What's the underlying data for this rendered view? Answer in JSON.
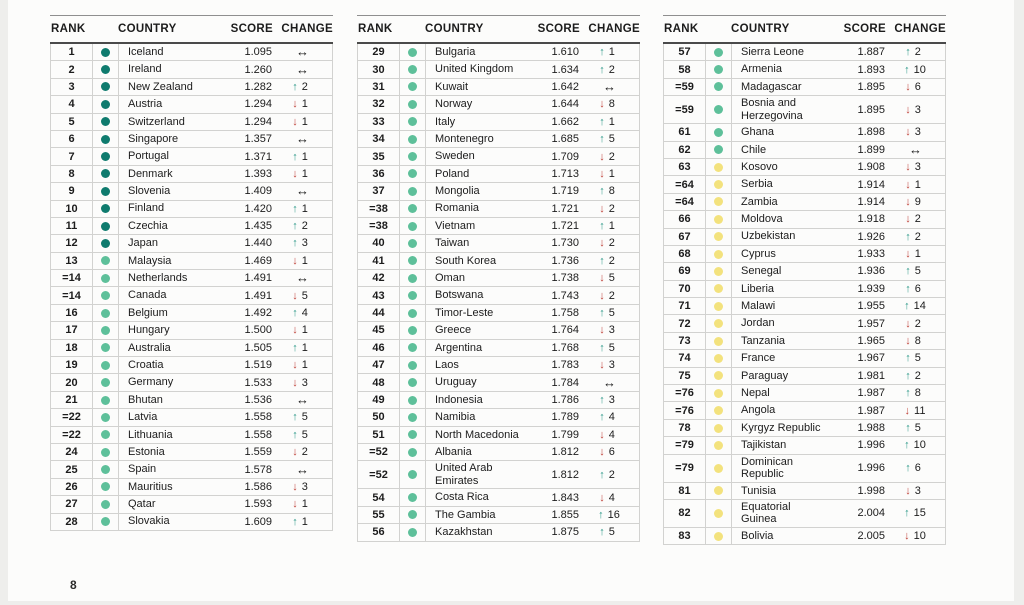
{
  "page": {
    "page_number": "8"
  },
  "colors": {
    "bands": {
      "dark": "#0f7b6e",
      "green": "#5ec09a",
      "yellow": "#f3e27d"
    },
    "change": {
      "up": "#2f9a8a",
      "down": "#c0453c",
      "same": "#1a1a1a"
    },
    "text": "#1c1c1c",
    "grid_line": "#d2d2d0"
  },
  "icons": {
    "up": "↑",
    "down": "↓",
    "same": "↔"
  },
  "tables": [
    {
      "headers": [
        "RANK",
        "COUNTRY",
        "SCORE",
        "CHANGE"
      ],
      "rows": [
        {
          "rank": "1",
          "band": "dark",
          "country": "Iceland",
          "score": "1.095",
          "dir": "same",
          "change": ""
        },
        {
          "rank": "2",
          "band": "dark",
          "country": "Ireland",
          "score": "1.260",
          "dir": "same",
          "change": ""
        },
        {
          "rank": "3",
          "band": "dark",
          "country": "New Zealand",
          "score": "1.282",
          "dir": "up",
          "change": "2"
        },
        {
          "rank": "4",
          "band": "dark",
          "country": "Austria",
          "score": "1.294",
          "dir": "down",
          "change": "1"
        },
        {
          "rank": "5",
          "band": "dark",
          "country": "Switzerland",
          "score": "1.294",
          "dir": "down",
          "change": "1"
        },
        {
          "rank": "6",
          "band": "dark",
          "country": "Singapore",
          "score": "1.357",
          "dir": "same",
          "change": ""
        },
        {
          "rank": "7",
          "band": "dark",
          "country": "Portugal",
          "score": "1.371",
          "dir": "up",
          "change": "1"
        },
        {
          "rank": "8",
          "band": "dark",
          "country": "Denmark",
          "score": "1.393",
          "dir": "down",
          "change": "1"
        },
        {
          "rank": "9",
          "band": "dark",
          "country": "Slovenia",
          "score": "1.409",
          "dir": "same",
          "change": ""
        },
        {
          "rank": "10",
          "band": "dark",
          "country": "Finland",
          "score": "1.420",
          "dir": "up",
          "change": "1"
        },
        {
          "rank": "11",
          "band": "dark",
          "country": "Czechia",
          "score": "1.435",
          "dir": "up",
          "change": "2"
        },
        {
          "rank": "12",
          "band": "dark",
          "country": "Japan",
          "score": "1.440",
          "dir": "up",
          "change": "3"
        },
        {
          "rank": "13",
          "band": "green",
          "country": "Malaysia",
          "score": "1.469",
          "dir": "down",
          "change": "1"
        },
        {
          "rank": "=14",
          "band": "green",
          "country": "Netherlands",
          "score": "1.491",
          "dir": "same",
          "change": ""
        },
        {
          "rank": "=14",
          "band": "green",
          "country": "Canada",
          "score": "1.491",
          "dir": "down",
          "change": "5"
        },
        {
          "rank": "16",
          "band": "green",
          "country": "Belgium",
          "score": "1.492",
          "dir": "up",
          "change": "4"
        },
        {
          "rank": "17",
          "band": "green",
          "country": "Hungary",
          "score": "1.500",
          "dir": "down",
          "change": "1"
        },
        {
          "rank": "18",
          "band": "green",
          "country": "Australia",
          "score": "1.505",
          "dir": "up",
          "change": "1"
        },
        {
          "rank": "19",
          "band": "green",
          "country": "Croatia",
          "score": "1.519",
          "dir": "down",
          "change": "1"
        },
        {
          "rank": "20",
          "band": "green",
          "country": "Germany",
          "score": "1.533",
          "dir": "down",
          "change": "3"
        },
        {
          "rank": "21",
          "band": "green",
          "country": "Bhutan",
          "score": "1.536",
          "dir": "same",
          "change": ""
        },
        {
          "rank": "=22",
          "band": "green",
          "country": "Latvia",
          "score": "1.558",
          "dir": "up",
          "change": "5"
        },
        {
          "rank": "=22",
          "band": "green",
          "country": "Lithuania",
          "score": "1.558",
          "dir": "up",
          "change": "5"
        },
        {
          "rank": "24",
          "band": "green",
          "country": "Estonia",
          "score": "1.559",
          "dir": "down",
          "change": "2"
        },
        {
          "rank": "25",
          "band": "green",
          "country": "Spain",
          "score": "1.578",
          "dir": "same",
          "change": ""
        },
        {
          "rank": "26",
          "band": "green",
          "country": "Mauritius",
          "score": "1.586",
          "dir": "down",
          "change": "3"
        },
        {
          "rank": "27",
          "band": "green",
          "country": "Qatar",
          "score": "1.593",
          "dir": "down",
          "change": "1"
        },
        {
          "rank": "28",
          "band": "green",
          "country": "Slovakia",
          "score": "1.609",
          "dir": "up",
          "change": "1"
        }
      ]
    },
    {
      "headers": [
        "RANK",
        "COUNTRY",
        "SCORE",
        "CHANGE"
      ],
      "rows": [
        {
          "rank": "29",
          "band": "green",
          "country": "Bulgaria",
          "score": "1.610",
          "dir": "up",
          "change": "1"
        },
        {
          "rank": "30",
          "band": "green",
          "country": "United Kingdom",
          "score": "1.634",
          "dir": "up",
          "change": "2"
        },
        {
          "rank": "31",
          "band": "green",
          "country": "Kuwait",
          "score": "1.642",
          "dir": "same",
          "change": ""
        },
        {
          "rank": "32",
          "band": "green",
          "country": "Norway",
          "score": "1.644",
          "dir": "down",
          "change": "8"
        },
        {
          "rank": "33",
          "band": "green",
          "country": "Italy",
          "score": "1.662",
          "dir": "up",
          "change": "1"
        },
        {
          "rank": "34",
          "band": "green",
          "country": "Montenegro",
          "score": "1.685",
          "dir": "up",
          "change": "5"
        },
        {
          "rank": "35",
          "band": "green",
          "country": "Sweden",
          "score": "1.709",
          "dir": "down",
          "change": "2"
        },
        {
          "rank": "36",
          "band": "green",
          "country": "Poland",
          "score": "1.713",
          "dir": "down",
          "change": "1"
        },
        {
          "rank": "37",
          "band": "green",
          "country": "Mongolia",
          "score": "1.719",
          "dir": "up",
          "change": "8"
        },
        {
          "rank": "=38",
          "band": "green",
          "country": "Romania",
          "score": "1.721",
          "dir": "down",
          "change": "2"
        },
        {
          "rank": "=38",
          "band": "green",
          "country": "Vietnam",
          "score": "1.721",
          "dir": "up",
          "change": "1"
        },
        {
          "rank": "40",
          "band": "green",
          "country": "Taiwan",
          "score": "1.730",
          "dir": "down",
          "change": "2"
        },
        {
          "rank": "41",
          "band": "green",
          "country": "South Korea",
          "score": "1.736",
          "dir": "up",
          "change": "2"
        },
        {
          "rank": "42",
          "band": "green",
          "country": "Oman",
          "score": "1.738",
          "dir": "down",
          "change": "5"
        },
        {
          "rank": "43",
          "band": "green",
          "country": "Botswana",
          "score": "1.743",
          "dir": "down",
          "change": "2"
        },
        {
          "rank": "44",
          "band": "green",
          "country": "Timor-Leste",
          "score": "1.758",
          "dir": "up",
          "change": "5"
        },
        {
          "rank": "45",
          "band": "green",
          "country": "Greece",
          "score": "1.764",
          "dir": "down",
          "change": "3"
        },
        {
          "rank": "46",
          "band": "green",
          "country": "Argentina",
          "score": "1.768",
          "dir": "up",
          "change": "5"
        },
        {
          "rank": "47",
          "band": "green",
          "country": "Laos",
          "score": "1.783",
          "dir": "down",
          "change": "3"
        },
        {
          "rank": "48",
          "band": "green",
          "country": "Uruguay",
          "score": "1.784",
          "dir": "same",
          "change": ""
        },
        {
          "rank": "49",
          "band": "green",
          "country": "Indonesia",
          "score": "1.786",
          "dir": "up",
          "change": "3"
        },
        {
          "rank": "50",
          "band": "green",
          "country": "Namibia",
          "score": "1.789",
          "dir": "up",
          "change": "4"
        },
        {
          "rank": "51",
          "band": "green",
          "country": "North Macedonia",
          "score": "1.799",
          "dir": "down",
          "change": "4"
        },
        {
          "rank": "=52",
          "band": "green",
          "country": "Albania",
          "score": "1.812",
          "dir": "down",
          "change": "6"
        },
        {
          "rank": "=52",
          "band": "green",
          "country": "United Arab Emirates",
          "score": "1.812",
          "dir": "up",
          "change": "2"
        },
        {
          "rank": "54",
          "band": "green",
          "country": "Costa Rica",
          "score": "1.843",
          "dir": "down",
          "change": "4"
        },
        {
          "rank": "55",
          "band": "green",
          "country": "The Gambia",
          "score": "1.855",
          "dir": "up",
          "change": "16"
        },
        {
          "rank": "56",
          "band": "green",
          "country": "Kazakhstan",
          "score": "1.875",
          "dir": "up",
          "change": "5"
        }
      ]
    },
    {
      "headers": [
        "RANK",
        "COUNTRY",
        "SCORE",
        "CHANGE"
      ],
      "rows": [
        {
          "rank": "57",
          "band": "green",
          "country": "Sierra Leone",
          "score": "1.887",
          "dir": "up",
          "change": "2"
        },
        {
          "rank": "58",
          "band": "green",
          "country": "Armenia",
          "score": "1.893",
          "dir": "up",
          "change": "10"
        },
        {
          "rank": "=59",
          "band": "green",
          "country": "Madagascar",
          "score": "1.895",
          "dir": "down",
          "change": "6"
        },
        {
          "rank": "=59",
          "band": "green",
          "country": "Bosnia and Herzegovina",
          "score": "1.895",
          "dir": "down",
          "change": "3"
        },
        {
          "rank": "61",
          "band": "green",
          "country": "Ghana",
          "score": "1.898",
          "dir": "down",
          "change": "3"
        },
        {
          "rank": "62",
          "band": "green",
          "country": "Chile",
          "score": "1.899",
          "dir": "same",
          "change": ""
        },
        {
          "rank": "63",
          "band": "yellow",
          "country": "Kosovo",
          "score": "1.908",
          "dir": "down",
          "change": "3"
        },
        {
          "rank": "=64",
          "band": "yellow",
          "country": "Serbia",
          "score": "1.914",
          "dir": "down",
          "change": "1"
        },
        {
          "rank": "=64",
          "band": "yellow",
          "country": "Zambia",
          "score": "1.914",
          "dir": "down",
          "change": "9"
        },
        {
          "rank": "66",
          "band": "yellow",
          "country": "Moldova",
          "score": "1.918",
          "dir": "down",
          "change": "2"
        },
        {
          "rank": "67",
          "band": "yellow",
          "country": "Uzbekistan",
          "score": "1.926",
          "dir": "up",
          "change": "2"
        },
        {
          "rank": "68",
          "band": "yellow",
          "country": "Cyprus",
          "score": "1.933",
          "dir": "down",
          "change": "1"
        },
        {
          "rank": "69",
          "band": "yellow",
          "country": "Senegal",
          "score": "1.936",
          "dir": "up",
          "change": "5"
        },
        {
          "rank": "70",
          "band": "yellow",
          "country": "Liberia",
          "score": "1.939",
          "dir": "up",
          "change": "6"
        },
        {
          "rank": "71",
          "band": "yellow",
          "country": "Malawi",
          "score": "1.955",
          "dir": "up",
          "change": "14"
        },
        {
          "rank": "72",
          "band": "yellow",
          "country": "Jordan",
          "score": "1.957",
          "dir": "down",
          "change": "2"
        },
        {
          "rank": "73",
          "band": "yellow",
          "country": "Tanzania",
          "score": "1.965",
          "dir": "down",
          "change": "8"
        },
        {
          "rank": "74",
          "band": "yellow",
          "country": "France",
          "score": "1.967",
          "dir": "up",
          "change": "5"
        },
        {
          "rank": "75",
          "band": "yellow",
          "country": "Paraguay",
          "score": "1.981",
          "dir": "up",
          "change": "2"
        },
        {
          "rank": "=76",
          "band": "yellow",
          "country": "Nepal",
          "score": "1.987",
          "dir": "up",
          "change": "8"
        },
        {
          "rank": "=76",
          "band": "yellow",
          "country": "Angola",
          "score": "1.987",
          "dir": "down",
          "change": "11"
        },
        {
          "rank": "78",
          "band": "yellow",
          "country": "Kyrgyz Republic",
          "score": "1.988",
          "dir": "up",
          "change": "5"
        },
        {
          "rank": "=79",
          "band": "yellow",
          "country": "Tajikistan",
          "score": "1.996",
          "dir": "up",
          "change": "10"
        },
        {
          "rank": "=79",
          "band": "yellow",
          "country": "Dominican Republic",
          "score": "1.996",
          "dir": "up",
          "change": "6"
        },
        {
          "rank": "81",
          "band": "yellow",
          "country": "Tunisia",
          "score": "1.998",
          "dir": "down",
          "change": "3"
        },
        {
          "rank": "82",
          "band": "yellow",
          "country": "Equatorial Guinea",
          "score": "2.004",
          "dir": "up",
          "change": "15"
        },
        {
          "rank": "83",
          "band": "yellow",
          "country": "Bolivia",
          "score": "2.005",
          "dir": "down",
          "change": "10"
        }
      ]
    }
  ]
}
